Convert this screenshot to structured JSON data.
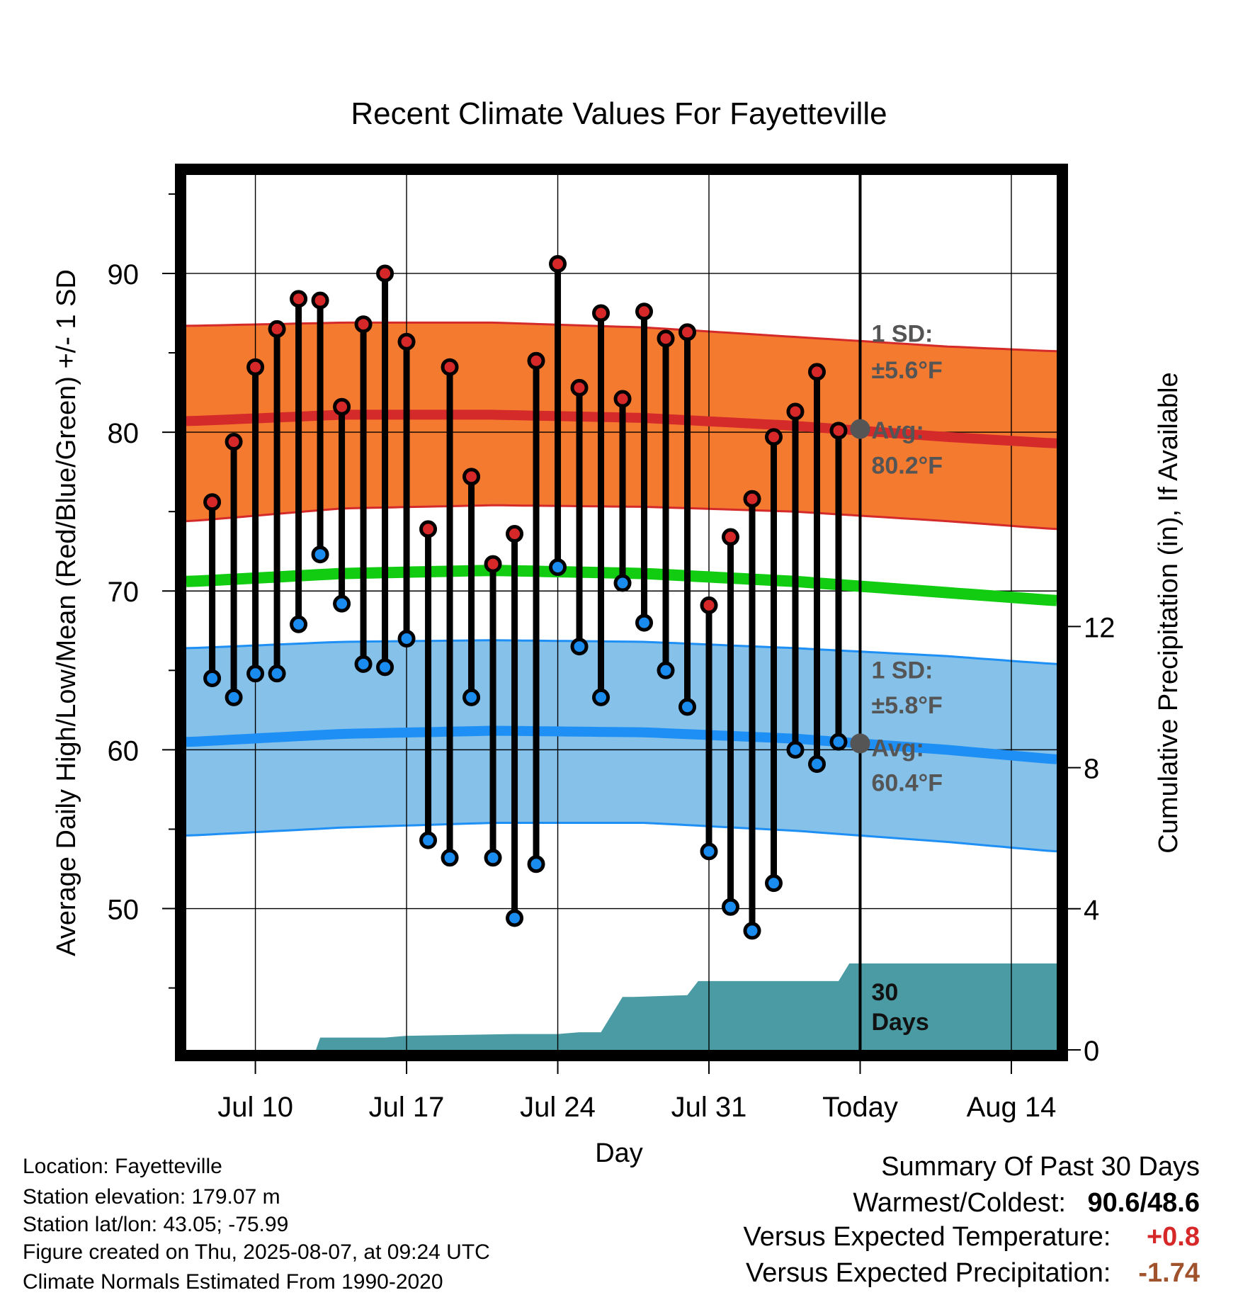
{
  "colors": {
    "high_band": "#f47a30",
    "high_line": "#d42a2a",
    "low_band": "#85c1e8",
    "low_line": "#1e8ff5",
    "mean_line": "#12cc12",
    "high_dot": "#d62828",
    "low_dot": "#1a8cf0",
    "precip_fill": "#4a9ba3",
    "today_marker": "#555555",
    "annotation_text": "#555555",
    "warm_value": "#d62828",
    "precip_value": "#a0522d"
  },
  "chart_data": {
    "type": "line",
    "title": "Recent Climate Values For Fayetteville",
    "xlabel": "Day",
    "ylabel": "Average Daily High/Low/Mean (Red/Blue/Green) +/- 1 SD",
    "y2label": "Cumulative Precipitation (in), If Available",
    "x_ticks": [
      "Jul 10",
      "Jul 17",
      "Jul 24",
      "Jul 31",
      "Today",
      "Aug 14"
    ],
    "x_tick_days": [
      0,
      7,
      14,
      21,
      28,
      35
    ],
    "x_range_days": [
      -3.2,
      37.1
    ],
    "today_day": 28,
    "y_ticks": [
      50,
      60,
      70,
      80,
      90
    ],
    "ylim": [
      41.1,
      96.2
    ],
    "y2_ticks": [
      0,
      4,
      8,
      12
    ],
    "y2lim": [
      0,
      24.8
    ],
    "grid": true,
    "high_obs_days": [
      -2,
      -1,
      0,
      1,
      2,
      3,
      4,
      5,
      6,
      7,
      8,
      9,
      10,
      11,
      12,
      13,
      14,
      15,
      16,
      17,
      18,
      19,
      20,
      21,
      22,
      23,
      24,
      25,
      26,
      27
    ],
    "high_obs": [
      75.6,
      79.4,
      84.1,
      86.5,
      88.4,
      88.3,
      81.6,
      86.8,
      90.0,
      85.7,
      73.9,
      84.1,
      77.2,
      71.7,
      73.6,
      84.5,
      90.6,
      82.8,
      87.5,
      82.1,
      87.6,
      85.9,
      86.3,
      69.1,
      73.4,
      75.8,
      79.7,
      81.3,
      83.8,
      80.1
    ],
    "low_obs_days": [
      -2,
      -1,
      0,
      1,
      2,
      3,
      4,
      5,
      6,
      7,
      8,
      9,
      10,
      11,
      12,
      13,
      14,
      15,
      16,
      17,
      18,
      19,
      20,
      21,
      22,
      23,
      24,
      25,
      26,
      27
    ],
    "low_obs": [
      64.5,
      63.3,
      64.8,
      64.8,
      67.9,
      72.3,
      69.2,
      65.4,
      65.2,
      67.0,
      54.3,
      53.2,
      63.3,
      53.2,
      49.4,
      52.8,
      71.5,
      66.5,
      63.3,
      70.5,
      68.0,
      65.0,
      62.7,
      53.6,
      50.1,
      48.6,
      51.6,
      60.0,
      59.1,
      60.5
    ],
    "normal_days": [
      -3,
      4,
      11,
      18,
      25,
      32,
      37
    ],
    "normal_high": [
      80.7,
      81.1,
      81.1,
      80.9,
      80.4,
      79.7,
      79.3
    ],
    "normal_mean": [
      70.6,
      71.1,
      71.3,
      71.1,
      70.6,
      69.9,
      69.4
    ],
    "normal_low": [
      60.5,
      61.0,
      61.2,
      61.1,
      60.7,
      60.0,
      59.4
    ],
    "high_sd_upper": [
      86.7,
      86.9,
      86.9,
      86.6,
      86.0,
      85.4,
      85.1
    ],
    "high_sd_lower": [
      74.4,
      75.2,
      75.4,
      75.3,
      75.0,
      74.4,
      73.9
    ],
    "low_sd_upper": [
      66.4,
      66.8,
      66.9,
      66.8,
      66.4,
      65.9,
      65.4
    ],
    "low_sd_lower": [
      54.6,
      55.1,
      55.4,
      55.4,
      54.9,
      54.2,
      53.6
    ],
    "precip_days": [
      -3,
      0,
      1,
      2,
      2.8,
      3,
      6,
      7,
      12,
      14,
      15,
      16,
      17,
      17.5,
      20,
      20.5,
      22,
      23,
      24,
      25,
      26,
      27,
      27.5,
      28,
      37.1
    ],
    "precip_cum": [
      0,
      0,
      0,
      0,
      0,
      0.35,
      0.35,
      0.4,
      0.45,
      0.45,
      0.5,
      0.5,
      1.5,
      1.5,
      1.55,
      1.95,
      1.95,
      1.95,
      1.95,
      1.95,
      1.95,
      1.95,
      2.45,
      2.45,
      2.45
    ],
    "annotations": {
      "high_sd_label": "1 SD:",
      "high_sd_value": "±5.6°F",
      "high_avg_label": "Avg:",
      "high_avg_value": "80.2°F",
      "low_sd_label": "1 SD:",
      "low_sd_value": "±5.8°F",
      "low_avg_label": "Avg:",
      "low_avg_value": "60.4°F",
      "days_label_1": "30",
      "days_label_2": "Days"
    },
    "today_avg_high": 80.2,
    "today_avg_low": 60.4
  },
  "station_info": {
    "location": "Location: Fayetteville",
    "elevation": "Station elevation: 179.07 m",
    "latlon": "Station lat/lon: 43.05; -75.99",
    "created": "Figure created on Thu, 2025-08-07, at 09:24 UTC",
    "normals": "Climate Normals Estimated From 1990-2020"
  },
  "summary": {
    "title": "Summary Of Past 30 Days",
    "warmest_label": "Warmest/Coldest:",
    "warmest_value": "90.6/48.6",
    "temp_label": "Versus Expected Temperature:",
    "temp_value": "+0.8",
    "precip_label": "Versus Expected Precipitation:",
    "precip_value": "-1.74"
  }
}
